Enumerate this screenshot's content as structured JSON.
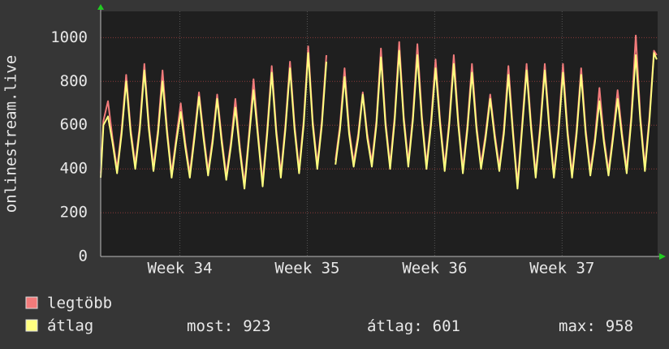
{
  "chart_data": {
    "type": "line",
    "ylabel": "onlinestream.live",
    "xlim": [
      0,
      30.6
    ],
    "ylim": [
      0,
      1120
    ],
    "yticks": [
      0,
      200,
      400,
      600,
      800,
      1000
    ],
    "xticks": [
      {
        "value": 4.35,
        "label": "Week 34"
      },
      {
        "value": 11.35,
        "label": "Week 35"
      },
      {
        "value": 18.35,
        "label": "Week 36"
      },
      {
        "value": 25.35,
        "label": "Week 37"
      }
    ],
    "grid": true,
    "x": [
      0,
      0.15,
      0.4,
      0.65,
      0.9,
      1.15,
      1.4,
      1.65,
      1.9,
      2.15,
      2.4,
      2.65,
      2.9,
      3.15,
      3.4,
      3.65,
      3.9,
      4.15,
      4.4,
      4.65,
      4.9,
      5.15,
      5.4,
      5.65,
      5.9,
      6.15,
      6.4,
      6.65,
      6.9,
      7.15,
      7.4,
      7.65,
      7.9,
      8.15,
      8.4,
      8.65,
      8.9,
      9.15,
      9.4,
      9.65,
      9.9,
      10.15,
      10.4,
      10.65,
      10.9,
      11.15,
      11.4,
      11.65,
      11.9,
      12.15,
      12.4,
      12.65,
      12.9,
      13.15,
      13.4,
      13.65,
      13.9,
      14.15,
      14.4,
      14.65,
      14.9,
      15.15,
      15.4,
      15.65,
      15.9,
      16.15,
      16.4,
      16.65,
      16.9,
      17.15,
      17.4,
      17.65,
      17.9,
      18.15,
      18.4,
      18.65,
      18.9,
      19.15,
      19.4,
      19.65,
      19.9,
      20.15,
      20.4,
      20.65,
      20.9,
      21.15,
      21.4,
      21.65,
      21.9,
      22.15,
      22.4,
      22.65,
      22.9,
      23.15,
      23.4,
      23.65,
      23.9,
      24.15,
      24.4,
      24.65,
      24.9,
      25.15,
      25.4,
      25.65,
      25.9,
      26.15,
      26.4,
      26.65,
      26.9,
      27.15,
      27.4,
      27.65,
      27.9,
      28.15,
      28.4,
      28.65,
      28.9,
      29.15,
      29.4,
      29.65,
      29.9,
      30.15,
      30.4,
      30.55
    ],
    "series": [
      {
        "name": "legtöbb",
        "color": "#f27b7b",
        "values": [
          380,
          620,
          710,
          540,
          400,
          580,
          830,
          580,
          420,
          600,
          880,
          600,
          410,
          580,
          850,
          580,
          380,
          540,
          700,
          520,
          380,
          560,
          750,
          560,
          390,
          540,
          740,
          540,
          370,
          520,
          720,
          500,
          330,
          560,
          810,
          560,
          340,
          580,
          870,
          580,
          380,
          600,
          890,
          600,
          400,
          620,
          960,
          620,
          420,
          620,
          920,
          null,
          440,
          600,
          860,
          580,
          430,
          560,
          750,
          560,
          430,
          620,
          950,
          620,
          420,
          640,
          980,
          640,
          430,
          640,
          970,
          640,
          420,
          620,
          900,
          620,
          410,
          620,
          920,
          620,
          400,
          600,
          880,
          600,
          420,
          560,
          740,
          560,
          410,
          580,
          870,
          580,
          330,
          600,
          880,
          600,
          380,
          600,
          880,
          600,
          380,
          580,
          880,
          580,
          380,
          580,
          860,
          580,
          390,
          540,
          770,
          540,
          390,
          560,
          760,
          560,
          400,
          640,
          1010,
          640,
          410,
          640,
          940,
          920
        ]
      },
      {
        "name": "átlag",
        "color": "#ffff80",
        "values": [
          360,
          600,
          640,
          520,
          380,
          560,
          800,
          560,
          400,
          580,
          850,
          580,
          390,
          560,
          800,
          560,
          360,
          520,
          660,
          500,
          360,
          540,
          730,
          540,
          370,
          520,
          720,
          520,
          350,
          500,
          680,
          480,
          310,
          540,
          760,
          540,
          320,
          560,
          840,
          560,
          360,
          580,
          860,
          580,
          380,
          600,
          930,
          600,
          400,
          600,
          890,
          null,
          420,
          580,
          820,
          560,
          410,
          540,
          740,
          540,
          410,
          600,
          910,
          600,
          400,
          620,
          940,
          620,
          410,
          620,
          920,
          620,
          400,
          600,
          860,
          600,
          390,
          600,
          880,
          600,
          380,
          580,
          840,
          580,
          400,
          540,
          720,
          540,
          390,
          560,
          830,
          560,
          310,
          580,
          850,
          580,
          360,
          580,
          850,
          580,
          360,
          560,
          840,
          560,
          360,
          560,
          830,
          560,
          370,
          520,
          710,
          520,
          370,
          540,
          720,
          540,
          380,
          620,
          920,
          620,
          390,
          620,
          930,
          900
        ]
      }
    ],
    "stats": [
      {
        "label": "most:",
        "value": 923
      },
      {
        "label": "átlag:",
        "value": 601
      },
      {
        "label": "max:",
        "value": 958
      }
    ]
  }
}
